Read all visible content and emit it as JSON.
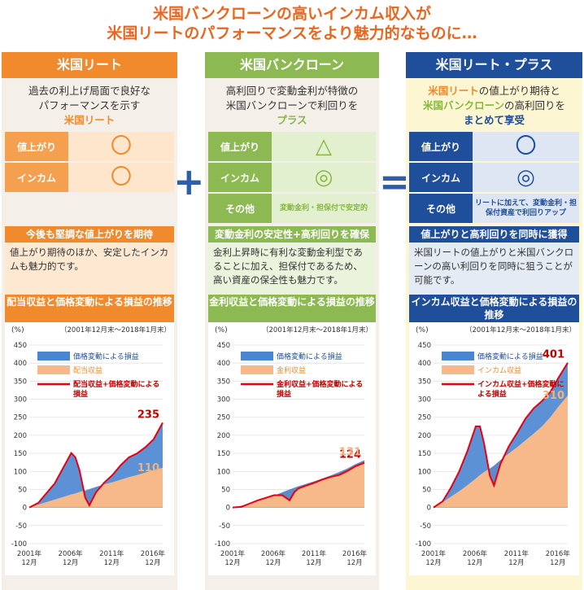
{
  "headline": {
    "line1": "米国バンクローンの高いインカム収入が",
    "line2": "米国リートのパフォーマンスをより魅力的なものに…"
  },
  "colors": {
    "orange": "#f08a2c",
    "green": "#8cb952",
    "navy": "#1f4e9a",
    "price_fill": "#4a86d0",
    "income_fill": "#f7b98a",
    "total_line": "#e60012"
  },
  "operators": {
    "plus": "+",
    "equals": "="
  },
  "columns": [
    {
      "title": "米国リート",
      "desc_lines": [
        "過去の利上げ局面で良好な",
        "パフォーマンスを示す"
      ],
      "desc_highlight": "米国リート",
      "features": [
        {
          "label": "値上がり",
          "value": "〇"
        },
        {
          "label": "インカム",
          "value": "〇"
        }
      ],
      "sub_title": "今後も堅調な値上がりを期待",
      "sub_text": "値上がり期待のほか、安定したインカムも魅力的です。",
      "chart_title": "配当収益と価格変動による損益の推移",
      "chart_period": "（2001年12月末～2018年1月末）"
    },
    {
      "title": "米国バンクローン",
      "desc_lines": [
        "高利回りで変動金利が特徴の",
        "米国バンクローンで利回りを"
      ],
      "desc_highlight": "プラス",
      "features": [
        {
          "label": "値上がり",
          "value": "△"
        },
        {
          "label": "インカム",
          "value": "◎"
        },
        {
          "label": "その他",
          "value": "変動金利・担保付で安定的"
        }
      ],
      "sub_title": "変動金利の安定性+高利回りを確保",
      "sub_text": "金利上昇時に有利な変動金利型であることに加え、担保付であるため、高い資産の保全性も魅力です。",
      "chart_title": "金利収益と価格変動による損益の推移",
      "chart_period": "（2001年12月末～2018年1月末）"
    },
    {
      "title": "米国リート・プラス",
      "desc_part1": "米国リート",
      "desc_part2": "の値上がり期待と",
      "desc_part3": "米国バンクローン",
      "desc_part4": "の高利回りを",
      "desc_highlight": "まとめて享受",
      "features": [
        {
          "label": "値上がり",
          "value": "〇"
        },
        {
          "label": "インカム",
          "value": "◎"
        },
        {
          "label": "その他",
          "value": "リートに加えて、変動金利・担保付資産で利回りアップ"
        }
      ],
      "sub_title": "値上がりと高利回りを同時に獲得",
      "sub_text": "米国リートの値上がりと米国バンクローンの高い利回りを同時に狙うことが可能です。",
      "chart_title": "インカム収益と価格変動による損益の推移",
      "chart_period": "（2001年12月末～2018年1月末）"
    }
  ],
  "chart_data": [
    {
      "type": "area",
      "ylabel": "(%)",
      "ylim": [
        -100,
        450
      ],
      "yticks": [
        -100,
        -50,
        0,
        50,
        100,
        150,
        200,
        250,
        300,
        350,
        400,
        450
      ],
      "xticks": [
        "2001年12月",
        "2006年12月",
        "2011年12月",
        "2016年12月"
      ],
      "x": [
        2001.9,
        2003,
        2004,
        2005,
        2006,
        2007,
        2007.5,
        2008,
        2008.7,
        2009.2,
        2010,
        2011,
        2012,
        2013,
        2014,
        2015,
        2016,
        2017,
        2018.1
      ],
      "series": [
        {
          "name": "価格変動による損益",
          "values": [
            0,
            5,
            25,
            45,
            80,
            115,
            100,
            60,
            -20,
            -45,
            -15,
            5,
            20,
            40,
            55,
            60,
            70,
            85,
            125
          ]
        },
        {
          "name": "配当収益",
          "values": [
            0,
            8,
            15,
            22,
            29,
            36,
            39,
            43,
            47,
            51,
            57,
            64,
            70,
            77,
            84,
            90,
            97,
            104,
            110
          ]
        },
        {
          "name": "配当収益+価格変動による損益",
          "values": [
            0,
            13,
            40,
            67,
            109,
            151,
            139,
            103,
            27,
            6,
            42,
            69,
            90,
            117,
            139,
            150,
            167,
            189,
            235
          ]
        }
      ],
      "end_labels": {
        "total": "235",
        "income": "110"
      }
    },
    {
      "type": "area",
      "ylabel": "(%)",
      "ylim": [
        -100,
        450
      ],
      "yticks": [
        -100,
        -50,
        0,
        50,
        100,
        150,
        200,
        250,
        300,
        350,
        400,
        450
      ],
      "xticks": [
        "2001年12月",
        "2006年12月",
        "2011年12月",
        "2016年12月"
      ],
      "x": [
        2001.9,
        2003,
        2004,
        2005,
        2006,
        2007,
        2008,
        2008.9,
        2009.5,
        2010,
        2011,
        2012,
        2013,
        2014,
        2015,
        2016,
        2017,
        2018.1
      ],
      "series": [
        {
          "name": "価格変動による損益",
          "values": [
            0,
            -3,
            0,
            2,
            2,
            1,
            -8,
            -30,
            -12,
            -6,
            -5,
            -4,
            -3,
            -4,
            -8,
            -7,
            -6,
            -7
          ]
        },
        {
          "name": "金利収益",
          "values": [
            0,
            5,
            11,
            18,
            25,
            33,
            42,
            50,
            55,
            59,
            66,
            73,
            81,
            89,
            98,
            108,
            120,
            131
          ]
        },
        {
          "name": "金利収益+価格変動による損益",
          "values": [
            0,
            2,
            11,
            20,
            27,
            34,
            34,
            20,
            43,
            53,
            61,
            69,
            78,
            85,
            90,
            101,
            114,
            124
          ]
        }
      ],
      "end_labels": {
        "total": "124",
        "income": "131"
      }
    },
    {
      "type": "area",
      "ylabel": "(%)",
      "ylim": [
        -100,
        450
      ],
      "yticks": [
        -100,
        -50,
        0,
        50,
        100,
        150,
        200,
        250,
        300,
        350,
        400,
        450
      ],
      "xticks": [
        "2001年12月",
        "2006年12月",
        "2011年12月",
        "2016年12月"
      ],
      "x": [
        2001.9,
        2003,
        2004,
        2005,
        2006,
        2007,
        2007.5,
        2008,
        2008.7,
        2009.2,
        2010,
        2011,
        2012,
        2013,
        2014,
        2015,
        2016,
        2017,
        2018.1
      ],
      "series": [
        {
          "name": "価格変動による損益",
          "values": [
            0,
            3,
            25,
            55,
            95,
            145,
            135,
            80,
            -20,
            -55,
            -10,
            20,
            40,
            60,
            70,
            70,
            70,
            80,
            91
          ]
        },
        {
          "name": "インカム収益",
          "values": [
            0,
            14,
            30,
            45,
            62,
            80,
            90,
            98,
            108,
            116,
            132,
            150,
            167,
            186,
            205,
            225,
            250,
            280,
            310
          ]
        },
        {
          "name": "インカム収益+価格変動による損益",
          "values": [
            0,
            17,
            55,
            100,
            157,
            225,
            225,
            178,
            88,
            61,
            122,
            170,
            207,
            246,
            275,
            295,
            320,
            360,
            401
          ]
        }
      ],
      "end_labels": {
        "total": "401",
        "income": "310"
      }
    }
  ]
}
